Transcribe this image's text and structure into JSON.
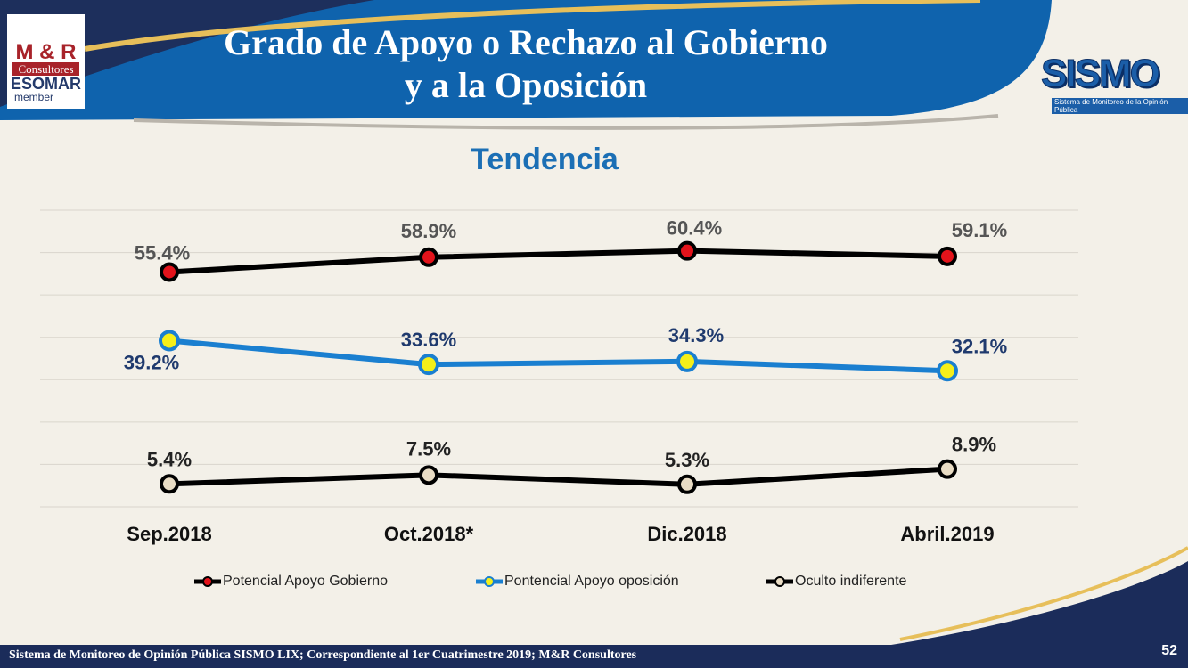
{
  "header": {
    "title_line1": "Grado de Apoyo o Rechazo al Gobierno",
    "title_line2": "y a la Oposición"
  },
  "logo": {
    "line1": "M & R",
    "line2": "Consultores",
    "line3": "ESOMAR",
    "line4": "member"
  },
  "sismo_logo": {
    "name": "SISMO",
    "tagline": "Sistema de Monitoreo de la Opinión Pública"
  },
  "footer": {
    "text": "Sistema de Monitoreo de Opinión Pública SISMO LIX; Correspondiente al 1er Cuatrimestre 2019; M&R Consultores",
    "page": "52"
  },
  "chart_data": {
    "type": "line",
    "title": "Tendencia",
    "categories": [
      "Sep.2018",
      "Oct.2018*",
      "Dic.2018",
      "Abril.2019"
    ],
    "ylim": [
      0,
      70
    ],
    "grid": true,
    "legend_position": "bottom",
    "series": [
      {
        "name": "Potencial Apoyo Gobierno",
        "values": [
          55.4,
          58.9,
          60.4,
          59.1
        ],
        "labels": [
          "55.4%",
          "58.9%",
          "60.4%",
          "59.1%"
        ],
        "line_color": "#000000",
        "marker_color": "#e3131b",
        "label_color": "#555555"
      },
      {
        "name": "Pontencial Apoyo oposición",
        "values": [
          39.2,
          33.6,
          34.3,
          32.1
        ],
        "labels": [
          "39.2%",
          "33.6%",
          "34.3%",
          "32.1%"
        ],
        "line_color": "#1a7fd0",
        "marker_color": "#f5ef1a",
        "label_color": "#1f3a6e"
      },
      {
        "name": "Oculto indiferente",
        "values": [
          5.4,
          7.5,
          5.3,
          8.9
        ],
        "labels": [
          "5.4%",
          "7.5%",
          "5.3%",
          "8.9%"
        ],
        "line_color": "#000000",
        "marker_color": "#e9dcc4",
        "label_color": "#222222"
      }
    ]
  }
}
